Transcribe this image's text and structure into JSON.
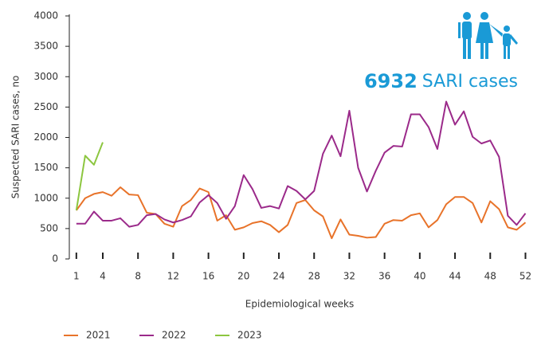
{
  "chart_data": {
    "type": "line",
    "y_label": "Suspected SARI cases, no",
    "x_label": "Epidemiological weeks",
    "annotation": {
      "number": "6932",
      "text": "SARI cases"
    },
    "x": [
      1,
      2,
      3,
      4,
      5,
      6,
      7,
      8,
      9,
      10,
      11,
      12,
      13,
      14,
      15,
      16,
      17,
      18,
      19,
      20,
      21,
      22,
      23,
      24,
      25,
      26,
      27,
      28,
      29,
      30,
      31,
      32,
      33,
      34,
      35,
      36,
      37,
      38,
      39,
      40,
      41,
      42,
      43,
      44,
      45,
      46,
      47,
      48,
      49,
      50,
      51,
      52
    ],
    "series": [
      {
        "name": "2021",
        "color": "#e8732a",
        "values": [
          800,
          1000,
          1070,
          1100,
          1040,
          1180,
          1060,
          1050,
          760,
          740,
          580,
          530,
          870,
          970,
          1160,
          1100,
          630,
          720,
          480,
          520,
          590,
          620,
          560,
          440,
          560,
          920,
          970,
          800,
          700,
          340,
          650,
          400,
          380,
          350,
          360,
          580,
          640,
          630,
          720,
          750,
          520,
          640,
          900,
          1020,
          1020,
          920,
          600,
          950,
          820,
          520,
          480,
          600
        ]
      },
      {
        "name": "2022",
        "color": "#9b2a8a",
        "values": [
          580,
          580,
          780,
          630,
          630,
          670,
          530,
          560,
          720,
          740,
          650,
          600,
          640,
          700,
          930,
          1050,
          920,
          660,
          870,
          1380,
          1150,
          840,
          870,
          830,
          1200,
          1120,
          980,
          1120,
          1730,
          2030,
          1690,
          2440,
          1500,
          1110,
          1450,
          1750,
          1860,
          1850,
          2380,
          2380,
          2170,
          1810,
          2590,
          2210,
          2430,
          2010,
          1900,
          1950,
          1680,
          710,
          560,
          750
        ]
      },
      {
        "name": "2023",
        "color": "#8cc63f",
        "values": [
          800,
          1700,
          1550,
          1920,
          null,
          null,
          null,
          null,
          null,
          null,
          null,
          null,
          null,
          null,
          null,
          null,
          null,
          null,
          null,
          null,
          null,
          null,
          null,
          null,
          null,
          null,
          null,
          null,
          null,
          null,
          null,
          null,
          null,
          null,
          null,
          null,
          null,
          null,
          null,
          null,
          null,
          null,
          null,
          null,
          null,
          null,
          null,
          null,
          null,
          null,
          null,
          null
        ]
      }
    ],
    "xlim": [
      0.2,
      52.5
    ],
    "xticks": [
      1,
      4,
      8,
      12,
      16,
      20,
      24,
      28,
      32,
      36,
      40,
      44,
      48,
      52
    ],
    "ylim": [
      0,
      4000
    ],
    "yticks": [
      0,
      500,
      1000,
      1500,
      2000,
      2500,
      3000,
      3500,
      4000
    ],
    "annotation_color": "#1a9ad6"
  }
}
